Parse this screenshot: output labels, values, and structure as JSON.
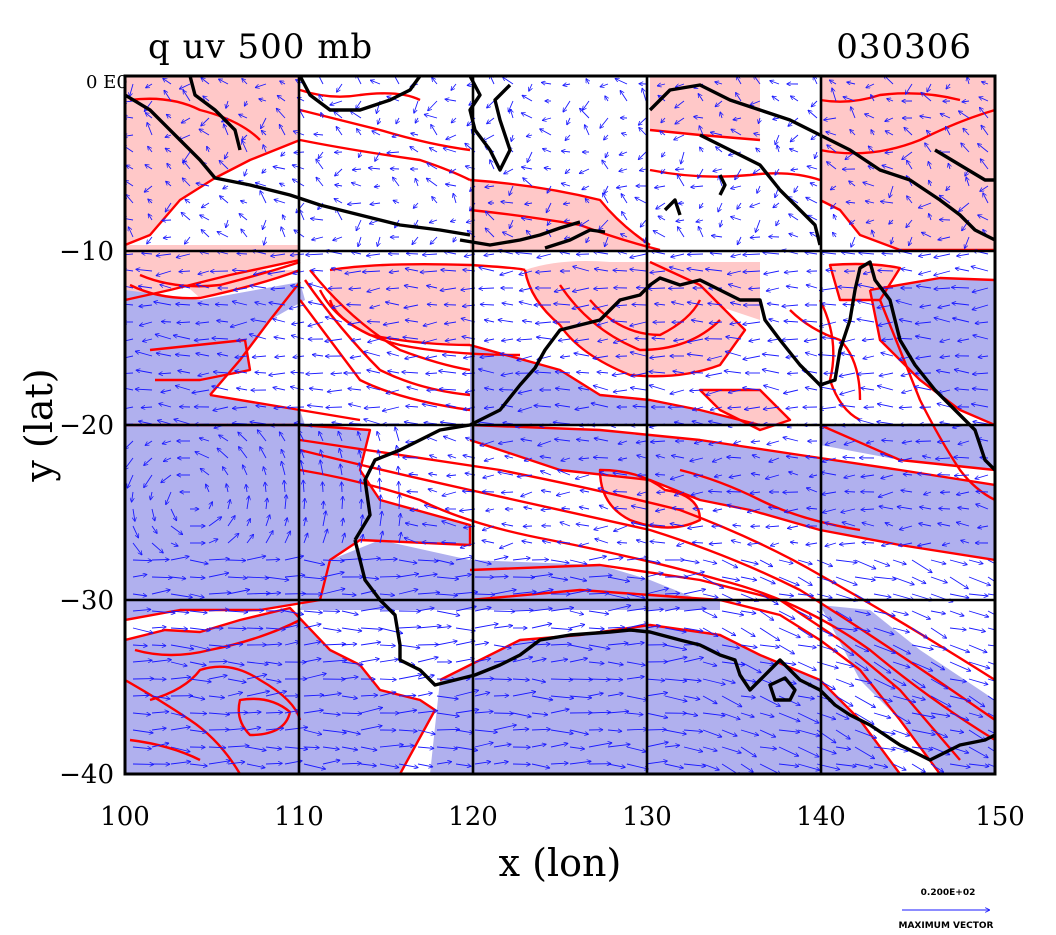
{
  "title_left": "q uv 500 mb",
  "title_right": "030306",
  "xlabel": "x (lon)",
  "ylabel": "y (lat)",
  "corner_label": "0 E0",
  "x_ticks": [
    "100",
    "110",
    "120",
    "130",
    "140",
    "150"
  ],
  "y_ticks": [
    "−10",
    "−20",
    "−30",
    "−40"
  ],
  "vector_legend": {
    "value": "0.200E+02",
    "caption": "MAXIMUM VECTOR"
  },
  "colors": {
    "contour": "#ff0000",
    "high_fill": "#ffc8c8",
    "low_fill": "#b0b0ee",
    "vector": "#1a1aff",
    "coastline": "#000000",
    "grid": "#000000"
  },
  "map": {
    "lon_range": [
      100,
      150
    ],
    "lat_range": [
      -40,
      0
    ],
    "grid_spacing_deg": 10,
    "fields": [
      "specific humidity q (shaded contours)",
      "wind uv (vectors)"
    ],
    "level": "500 mb"
  }
}
